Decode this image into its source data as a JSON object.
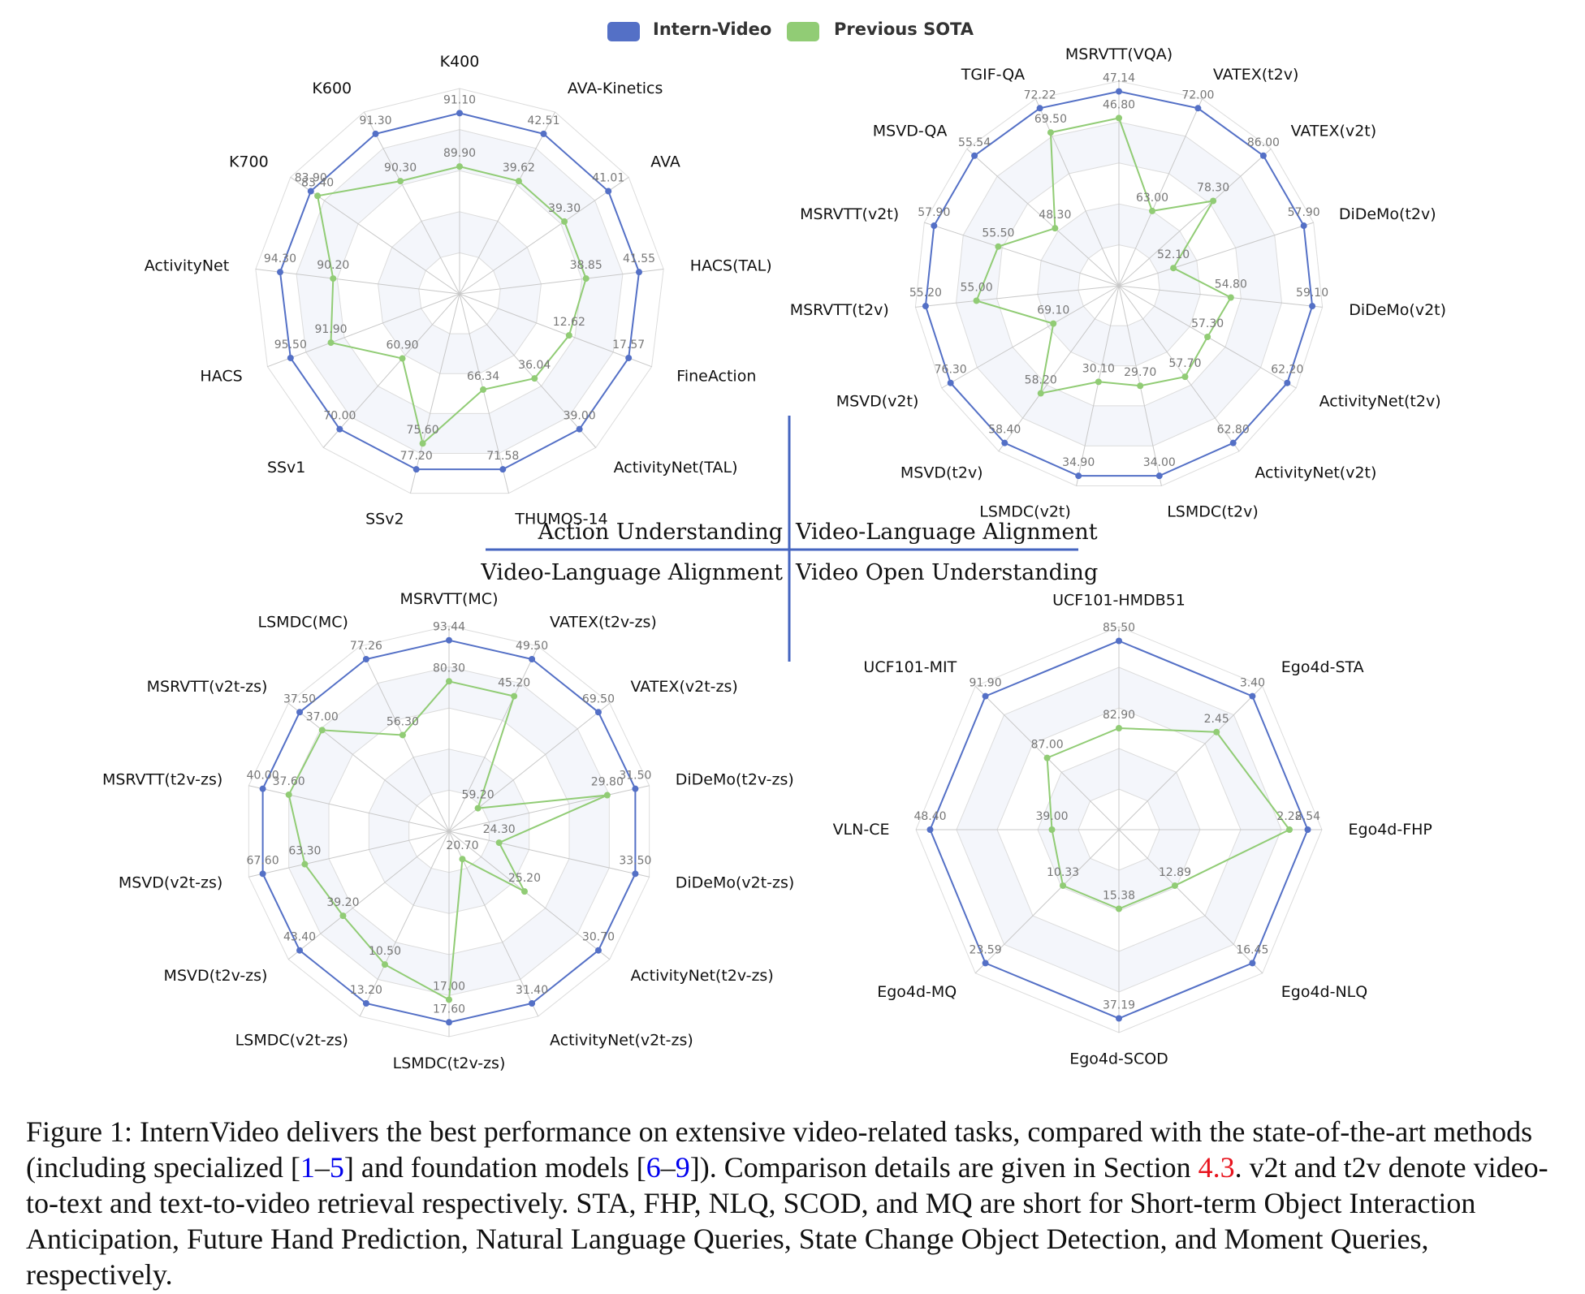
{
  "legend": {
    "a": "Intern-Video",
    "b": "Previous SOTA",
    "a_color": "#5470c6",
    "b_color": "#91cc75"
  },
  "quadrants": {
    "tl": "Action Understanding",
    "tr": "Video-Language Alignment",
    "bl": "Video-Language Alignment",
    "br": "Video Open Understanding"
  },
  "chart_data": [
    {
      "type": "radar",
      "title": "Action Understanding",
      "axes": [
        "K400",
        "AVA-Kinetics",
        "AVA",
        "HACS(TAL)",
        "FineAction",
        "ActivityNet(TAL)",
        "THUMOS-14",
        "SSv2",
        "SSv1",
        "HACS",
        "ActivityNet",
        "K700",
        "K600"
      ],
      "series": [
        {
          "name": "Intern-Video",
          "labels": [
            "91.10",
            "42.51",
            "41.01",
            "41.55",
            "17.57",
            "39.00",
            "71.58",
            "77.20",
            "70.00",
            "95.50",
            "94.30",
            "83.90",
            "91.30"
          ],
          "r": [
            0.88,
            0.88,
            0.88,
            0.88,
            0.88,
            0.88,
            0.88,
            0.88,
            0.88,
            0.88,
            0.88,
            0.88,
            0.88
          ]
        },
        {
          "name": "Previous SOTA",
          "labels": [
            "89.90",
            "39.62",
            "39.30",
            "38.85",
            "12.62",
            "36.04",
            "66.34",
            "75.60",
            "60.90",
            "91.90",
            "90.20",
            "83.40",
            "90.30"
          ],
          "r": [
            0.62,
            0.62,
            0.62,
            0.62,
            0.57,
            0.55,
            0.48,
            0.75,
            0.42,
            0.67,
            0.62,
            0.84,
            0.62
          ]
        }
      ]
    },
    {
      "type": "radar",
      "title": "Video-Language Alignment",
      "axes": [
        "MSRVTT(VQA)",
        "VATEX(t2v)",
        "VATEX(v2t)",
        "DiDeMo(t2v)",
        "DiDeMo(v2t)",
        "ActivityNet(t2v)",
        "ActivityNet(v2t)",
        "LSMDC(t2v)",
        "LSMDC(v2t)",
        "MSVD(t2v)",
        "MSVD(v2t)",
        "MSRVTT(t2v)",
        "MSRVTT(v2t)",
        "MSVD-QA",
        "TGIF-QA"
      ],
      "series": [
        {
          "name": "Intern-Video",
          "labels": [
            "47.14",
            "72.00",
            "86.00",
            "57.90",
            "59.10",
            "62.20",
            "62.80",
            "34.00",
            "34.90",
            "58.40",
            "76.30",
            "55.20",
            "57.90",
            "55.54",
            "72.22"
          ],
          "r": [
            0.95,
            0.95,
            0.95,
            0.95,
            0.95,
            0.95,
            0.95,
            0.95,
            0.95,
            0.95,
            0.95,
            0.95,
            0.95,
            0.95,
            0.95
          ]
        },
        {
          "name": "Previous SOTA",
          "labels": [
            "46.80",
            "63.00",
            "78.30",
            "52.10",
            "54.80",
            "57.30",
            "57.70",
            "29.70",
            "30.10",
            "58.20",
            "69.10",
            "55.00",
            "55.50",
            "48.30",
            "69.50"
          ],
          "r": [
            0.82,
            0.4,
            0.62,
            0.28,
            0.55,
            0.5,
            0.55,
            0.5,
            0.48,
            0.65,
            0.37,
            0.7,
            0.62,
            0.42,
            0.82
          ]
        }
      ]
    },
    {
      "type": "radar",
      "title": "Video-Language Alignment",
      "axes": [
        "MSRVTT(MC)",
        "VATEX(t2v-zs)",
        "VATEX(v2t-zs)",
        "DiDeMo(t2v-zs)",
        "DiDeMo(v2t-zs)",
        "ActivityNet(t2v-zs)",
        "ActivityNet(v2t-zs)",
        "LSMDC(t2v-zs)",
        "LSMDC(v2t-zs)",
        "MSVD(t2v-zs)",
        "MSVD(v2t-zs)",
        "MSRVTT(t2v-zs)",
        "MSRVTT(v2t-zs)",
        "LSMDC(MC)"
      ],
      "series": [
        {
          "name": "Intern-Video",
          "labels": [
            "93.44",
            "49.50",
            "69.50",
            "31.50",
            "33.50",
            "30.70",
            "31.40",
            "17.60",
            "13.20",
            "43.40",
            "67.60",
            "40.00",
            "37.50",
            "77.26"
          ],
          "r": [
            0.93,
            0.93,
            0.93,
            0.93,
            0.93,
            0.93,
            0.93,
            0.93,
            0.93,
            0.93,
            0.93,
            0.93,
            0.93,
            0.93
          ]
        },
        {
          "name": "Previous SOTA",
          "labels": [
            "80.30",
            "45.20",
            "59.20",
            "29.80",
            "24.30",
            "25.20",
            "20.70",
            "17.00",
            "10.50",
            "39.20",
            "63.30",
            "37.60",
            "37.00",
            "56.30"
          ],
          "r": [
            0.73,
            0.73,
            0.18,
            0.79,
            0.25,
            0.47,
            0.15,
            0.82,
            0.72,
            0.66,
            0.72,
            0.8,
            0.79,
            0.52
          ]
        }
      ]
    },
    {
      "type": "radar",
      "title": "Video Open Understanding",
      "axes": [
        "UCF101-HMDB51",
        "Ego4d-STA",
        "Ego4d-FHP",
        "Ego4d-NLQ",
        "Ego4d-SCOD",
        "Ego4d-MQ",
        "VLN-CE",
        "UCF101-MIT"
      ],
      "series": [
        {
          "name": "Intern-Video",
          "labels": [
            "85.50",
            "3.40",
            "2.54",
            "16.45",
            "37.19",
            "23.59",
            "48.40",
            "91.90"
          ],
          "r": [
            0.93,
            0.93,
            0.93,
            0.93,
            0.93,
            0.93,
            0.93,
            0.93
          ]
        },
        {
          "name": "Previous SOTA",
          "labels": [
            "82.90",
            "2.45",
            "2.28",
            "12.89",
            "15.38",
            "10.33",
            "39.00",
            "87.00"
          ],
          "r": [
            0.5,
            0.68,
            0.84,
            0.39,
            0.39,
            0.39,
            0.33,
            0.5
          ]
        }
      ]
    }
  ],
  "caption": {
    "p1": "Figure 1: InternVideo delivers the best performance on extensive video-related tasks, compared with the state-of-the-art methods (including specialized [",
    "r1": "1",
    "dash1": "–",
    "r2": "5",
    "p2": "] and foundation models [",
    "r3": "6",
    "dash2": "–",
    "r4": "9",
    "p3": "]). Comparison details are given in Section ",
    "sec": "4.3",
    "p4": ". v2t and t2v denote video-to-text and text-to-video retrieval respectively. STA, FHP, NLQ, SCOD, and MQ are short for Short-term Object Interaction Anticipation, Future Hand Prediction, Natural Language Queries, State Change Object Detection, and Moment Queries, respectively."
  }
}
